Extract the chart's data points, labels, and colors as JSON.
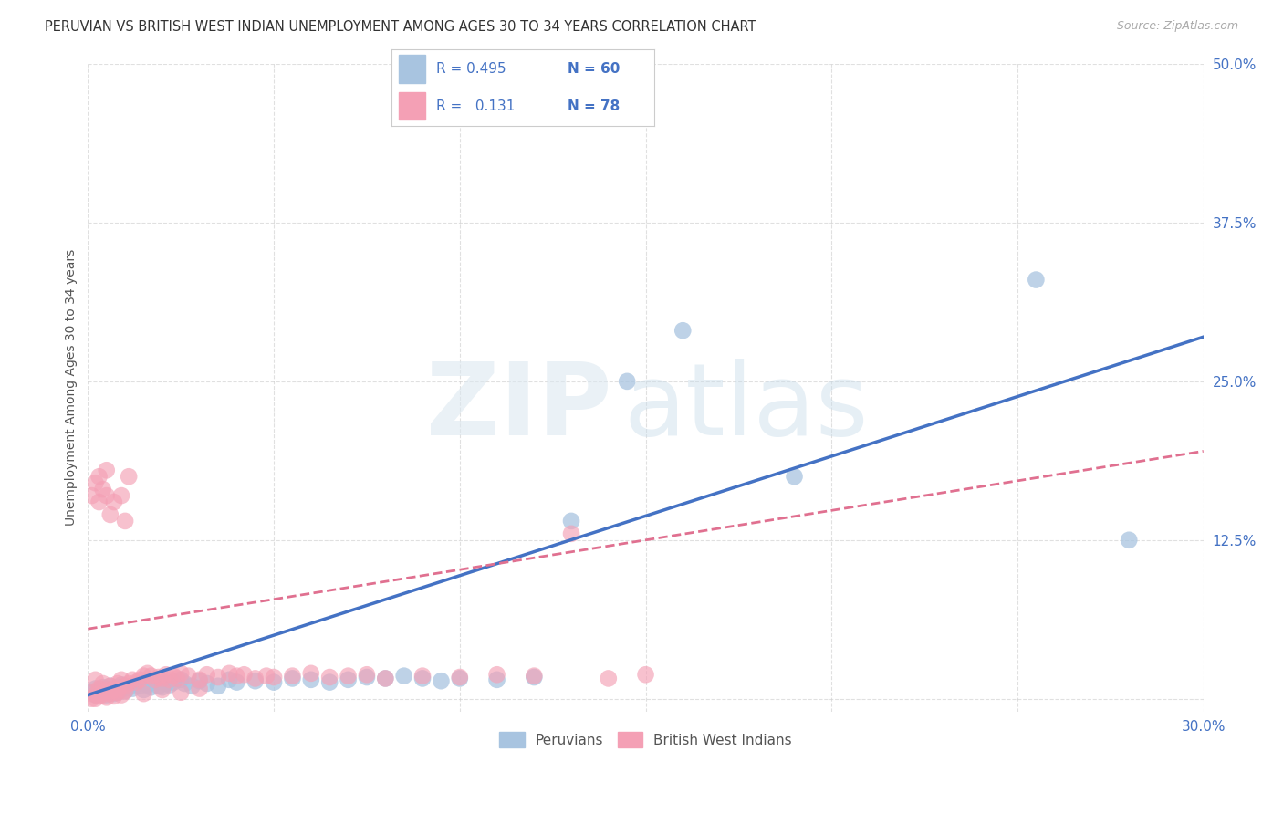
{
  "title": "PERUVIAN VS BRITISH WEST INDIAN UNEMPLOYMENT AMONG AGES 30 TO 34 YEARS CORRELATION CHART",
  "source": "Source: ZipAtlas.com",
  "ylabel": "Unemployment Among Ages 30 to 34 years",
  "xlim": [
    0.0,
    0.3
  ],
  "ylim": [
    -0.01,
    0.5
  ],
  "xticks": [
    0.0,
    0.05,
    0.1,
    0.15,
    0.2,
    0.25,
    0.3
  ],
  "yticks": [
    0.0,
    0.125,
    0.25,
    0.375,
    0.5
  ],
  "blue_color": "#a8c4e0",
  "pink_color": "#f4a0b5",
  "blue_line_color": "#4472c4",
  "pink_line_color": "#e07090",
  "legend_label_blue": "Peruvians",
  "legend_label_pink": "British West Indians",
  "background_color": "#ffffff",
  "grid_color": "#cccccc",
  "title_fontsize": 10.5,
  "tick_fontsize": 11,
  "tick_color": "#4472c4",
  "blue_trend": [
    0.003,
    0.945
  ],
  "pink_trend": [
    0.005,
    0.62
  ],
  "blue_scatter_x": [
    0.001,
    0.002,
    0.002,
    0.003,
    0.003,
    0.004,
    0.004,
    0.005,
    0.005,
    0.006,
    0.006,
    0.007,
    0.007,
    0.008,
    0.008,
    0.009,
    0.009,
    0.01,
    0.01,
    0.011,
    0.012,
    0.013,
    0.014,
    0.015,
    0.016,
    0.017,
    0.018,
    0.019,
    0.02,
    0.021,
    0.022,
    0.023,
    0.025,
    0.026,
    0.028,
    0.03,
    0.032,
    0.035,
    0.038,
    0.04,
    0.045,
    0.05,
    0.055,
    0.06,
    0.065,
    0.07,
    0.075,
    0.08,
    0.085,
    0.09,
    0.095,
    0.1,
    0.11,
    0.12,
    0.13,
    0.145,
    0.16,
    0.19,
    0.255,
    0.28
  ],
  "blue_scatter_y": [
    0.005,
    0.003,
    0.008,
    0.004,
    0.006,
    0.005,
    0.009,
    0.003,
    0.007,
    0.006,
    0.01,
    0.004,
    0.008,
    0.005,
    0.009,
    0.007,
    0.011,
    0.006,
    0.01,
    0.009,
    0.008,
    0.012,
    0.01,
    0.007,
    0.011,
    0.009,
    0.013,
    0.01,
    0.009,
    0.012,
    0.011,
    0.013,
    0.015,
    0.012,
    0.01,
    0.014,
    0.012,
    0.01,
    0.015,
    0.013,
    0.014,
    0.013,
    0.016,
    0.015,
    0.013,
    0.015,
    0.017,
    0.016,
    0.018,
    0.016,
    0.014,
    0.016,
    0.015,
    0.017,
    0.14,
    0.25,
    0.29,
    0.175,
    0.33,
    0.125
  ],
  "pink_scatter_x": [
    0.001,
    0.001,
    0.002,
    0.002,
    0.002,
    0.003,
    0.003,
    0.003,
    0.004,
    0.004,
    0.004,
    0.005,
    0.005,
    0.005,
    0.006,
    0.006,
    0.006,
    0.007,
    0.007,
    0.008,
    0.008,
    0.009,
    0.009,
    0.01,
    0.01,
    0.011,
    0.011,
    0.012,
    0.013,
    0.014,
    0.015,
    0.016,
    0.017,
    0.018,
    0.019,
    0.02,
    0.021,
    0.022,
    0.023,
    0.024,
    0.025,
    0.027,
    0.03,
    0.032,
    0.035,
    0.038,
    0.04,
    0.042,
    0.045,
    0.048,
    0.05,
    0.055,
    0.06,
    0.065,
    0.07,
    0.075,
    0.08,
    0.09,
    0.1,
    0.11,
    0.12,
    0.13,
    0.14,
    0.15,
    0.001,
    0.002,
    0.003,
    0.004,
    0.005,
    0.006,
    0.007,
    0.008,
    0.009,
    0.01,
    0.015,
    0.02,
    0.025,
    0.03
  ],
  "pink_scatter_y": [
    0.005,
    0.16,
    0.003,
    0.17,
    0.015,
    0.008,
    0.155,
    0.175,
    0.005,
    0.165,
    0.012,
    0.007,
    0.16,
    0.18,
    0.006,
    0.145,
    0.01,
    0.008,
    0.155,
    0.007,
    0.012,
    0.16,
    0.015,
    0.01,
    0.14,
    0.012,
    0.175,
    0.015,
    0.013,
    0.015,
    0.018,
    0.02,
    0.018,
    0.015,
    0.017,
    0.016,
    0.019,
    0.015,
    0.018,
    0.016,
    0.02,
    0.018,
    0.015,
    0.019,
    0.017,
    0.02,
    0.018,
    0.019,
    0.016,
    0.018,
    0.017,
    0.018,
    0.02,
    0.017,
    0.018,
    0.019,
    0.016,
    0.018,
    0.017,
    0.019,
    0.018,
    0.13,
    0.016,
    0.019,
    0.0,
    0.0,
    0.002,
    0.003,
    0.001,
    0.004,
    0.002,
    0.005,
    0.003,
    0.006,
    0.004,
    0.007,
    0.005,
    0.008
  ]
}
